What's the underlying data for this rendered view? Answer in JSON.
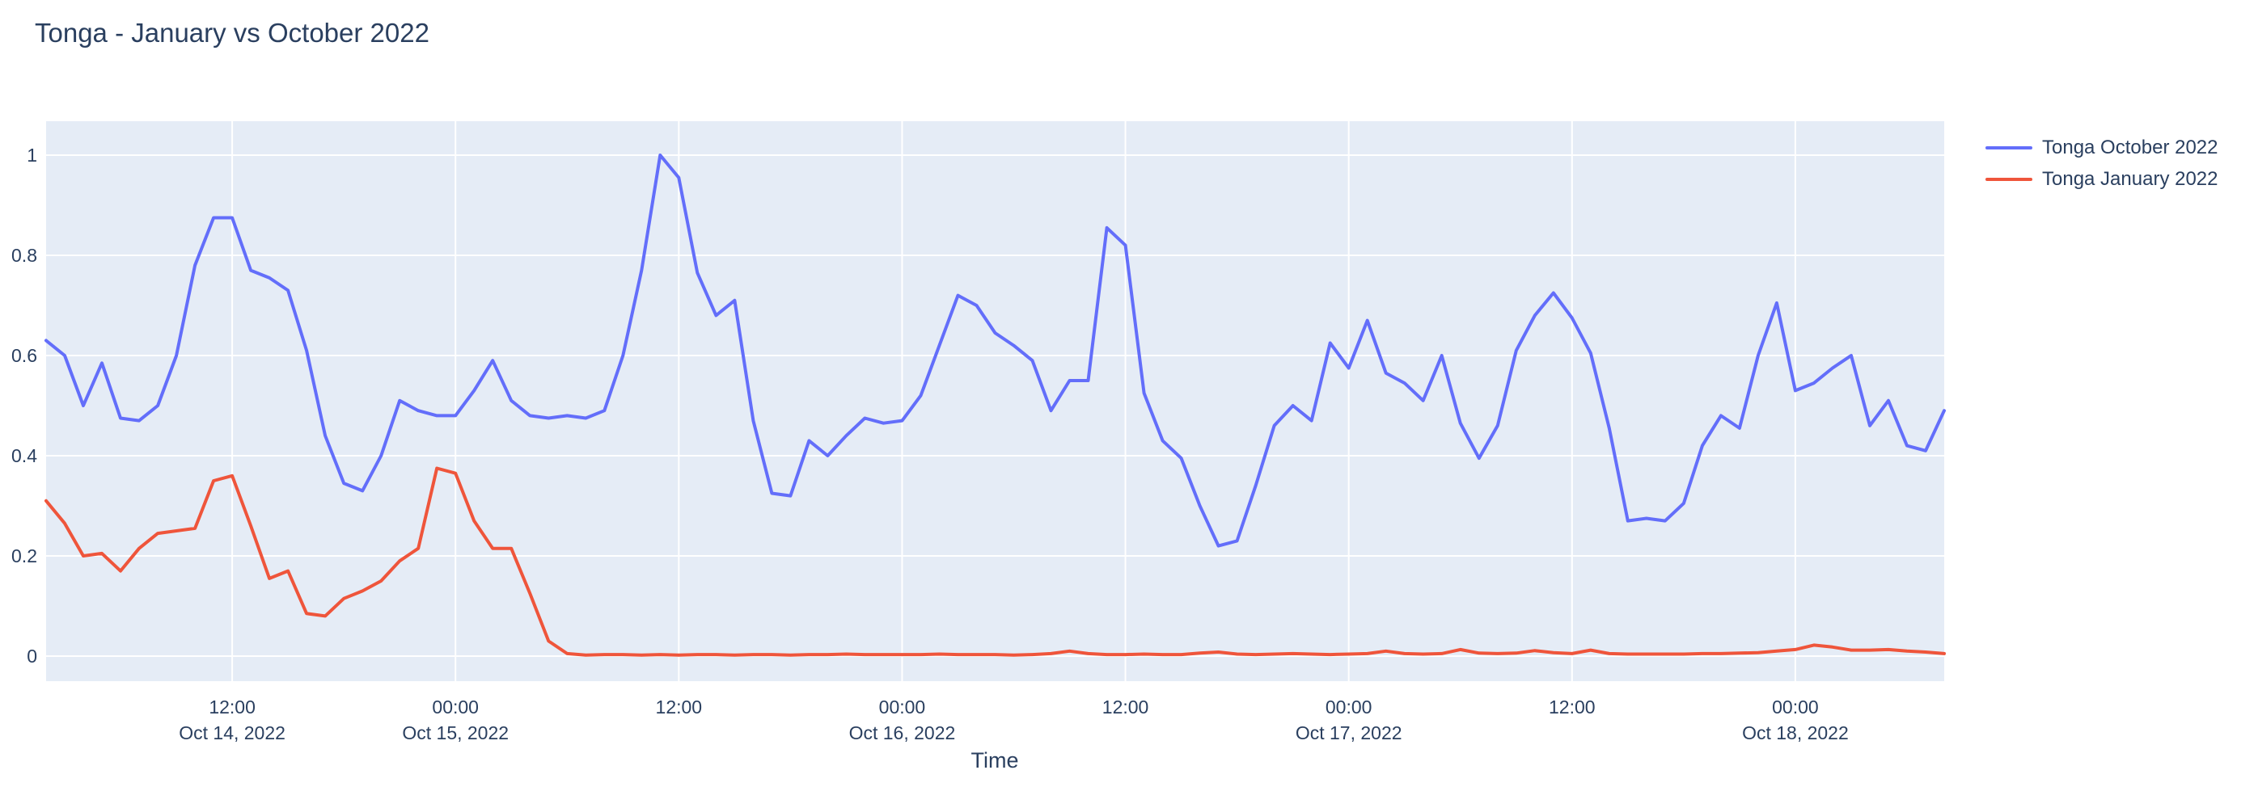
{
  "title": "Tonga - January vs October 2022",
  "colors": {
    "page_background": "#ffffff",
    "plot_background": "#e5ecf6",
    "grid": "#ffffff",
    "text": "#2a3f5f",
    "series_october": "#636efa",
    "series_january": "#ef553b"
  },
  "legend": {
    "items": [
      {
        "label": "Tonga October 2022",
        "color": "#636efa"
      },
      {
        "label": "Tonga January 2022",
        "color": "#ef553b"
      }
    ]
  },
  "chart_data": {
    "type": "line",
    "title": "Tonga - January vs October 2022",
    "xlabel": "Time",
    "ylabel": "",
    "grid": true,
    "legend_position": "top-right-outside",
    "x_start": "2022-10-14 02:00",
    "x_end": "2022-10-18 08:00",
    "x_step_hours": 1,
    "ylim": [
      -0.05,
      1.068
    ],
    "yticks": [
      0,
      0.2,
      0.4,
      0.6,
      0.8,
      1
    ],
    "ytick_labels": [
      "0",
      "0.2",
      "0.4",
      "0.6",
      "0.8",
      "1"
    ],
    "x_ticks": [
      {
        "index": 10,
        "time": "12:00",
        "date": "Oct 14, 2022"
      },
      {
        "index": 22,
        "time": "00:00",
        "date": "Oct 15, 2022"
      },
      {
        "index": 34,
        "time": "12:00",
        "date": ""
      },
      {
        "index": 46,
        "time": "00:00",
        "date": "Oct 16, 2022"
      },
      {
        "index": 58,
        "time": "12:00",
        "date": ""
      },
      {
        "index": 70,
        "time": "00:00",
        "date": "Oct 17, 2022"
      },
      {
        "index": 82,
        "time": "12:00",
        "date": ""
      },
      {
        "index": 94,
        "time": "00:00",
        "date": "Oct 18, 2022"
      }
    ],
    "series": [
      {
        "name": "Tonga October 2022",
        "color": "#636efa",
        "values": [
          0.63,
          0.6,
          0.5,
          0.585,
          0.475,
          0.47,
          0.5,
          0.6,
          0.78,
          0.875,
          0.875,
          0.77,
          0.755,
          0.73,
          0.61,
          0.44,
          0.345,
          0.33,
          0.4,
          0.51,
          0.49,
          0.48,
          0.48,
          0.53,
          0.59,
          0.51,
          0.48,
          0.475,
          0.48,
          0.475,
          0.49,
          0.6,
          0.77,
          1.0,
          0.955,
          0.765,
          0.68,
          0.71,
          0.47,
          0.325,
          0.32,
          0.43,
          0.4,
          0.44,
          0.475,
          0.465,
          0.47,
          0.52,
          0.62,
          0.72,
          0.7,
          0.645,
          0.62,
          0.59,
          0.49,
          0.55,
          0.55,
          0.855,
          0.82,
          0.525,
          0.43,
          0.395,
          0.3,
          0.22,
          0.23,
          0.34,
          0.46,
          0.5,
          0.47,
          0.625,
          0.575,
          0.67,
          0.565,
          0.545,
          0.51,
          0.6,
          0.465,
          0.395,
          0.46,
          0.61,
          0.68,
          0.725,
          0.675,
          0.605,
          0.455,
          0.27,
          0.275,
          0.27,
          0.305,
          0.42,
          0.48,
          0.455,
          0.6,
          0.705,
          0.53,
          0.545,
          0.575,
          0.6,
          0.46,
          0.51,
          0.42,
          0.41,
          0.49
        ]
      },
      {
        "name": "Tonga January 2022",
        "color": "#ef553b",
        "values": [
          0.31,
          0.265,
          0.2,
          0.205,
          0.17,
          0.215,
          0.245,
          0.25,
          0.255,
          0.35,
          0.36,
          0.26,
          0.155,
          0.17,
          0.085,
          0.08,
          0.115,
          0.13,
          0.15,
          0.19,
          0.215,
          0.375,
          0.365,
          0.27,
          0.215,
          0.215,
          0.125,
          0.03,
          0.005,
          0.002,
          0.003,
          0.003,
          0.002,
          0.003,
          0.002,
          0.003,
          0.003,
          0.002,
          0.003,
          0.003,
          0.002,
          0.003,
          0.003,
          0.004,
          0.003,
          0.003,
          0.003,
          0.003,
          0.004,
          0.003,
          0.003,
          0.003,
          0.002,
          0.003,
          0.005,
          0.01,
          0.005,
          0.003,
          0.003,
          0.004,
          0.003,
          0.003,
          0.006,
          0.008,
          0.004,
          0.003,
          0.004,
          0.005,
          0.004,
          0.003,
          0.004,
          0.005,
          0.01,
          0.005,
          0.004,
          0.005,
          0.013,
          0.006,
          0.005,
          0.006,
          0.011,
          0.007,
          0.005,
          0.012,
          0.005,
          0.004,
          0.004,
          0.004,
          0.004,
          0.005,
          0.005,
          0.006,
          0.007,
          0.01,
          0.013,
          0.022,
          0.018,
          0.012,
          0.012,
          0.013,
          0.01,
          0.008,
          0.005
        ]
      }
    ]
  }
}
